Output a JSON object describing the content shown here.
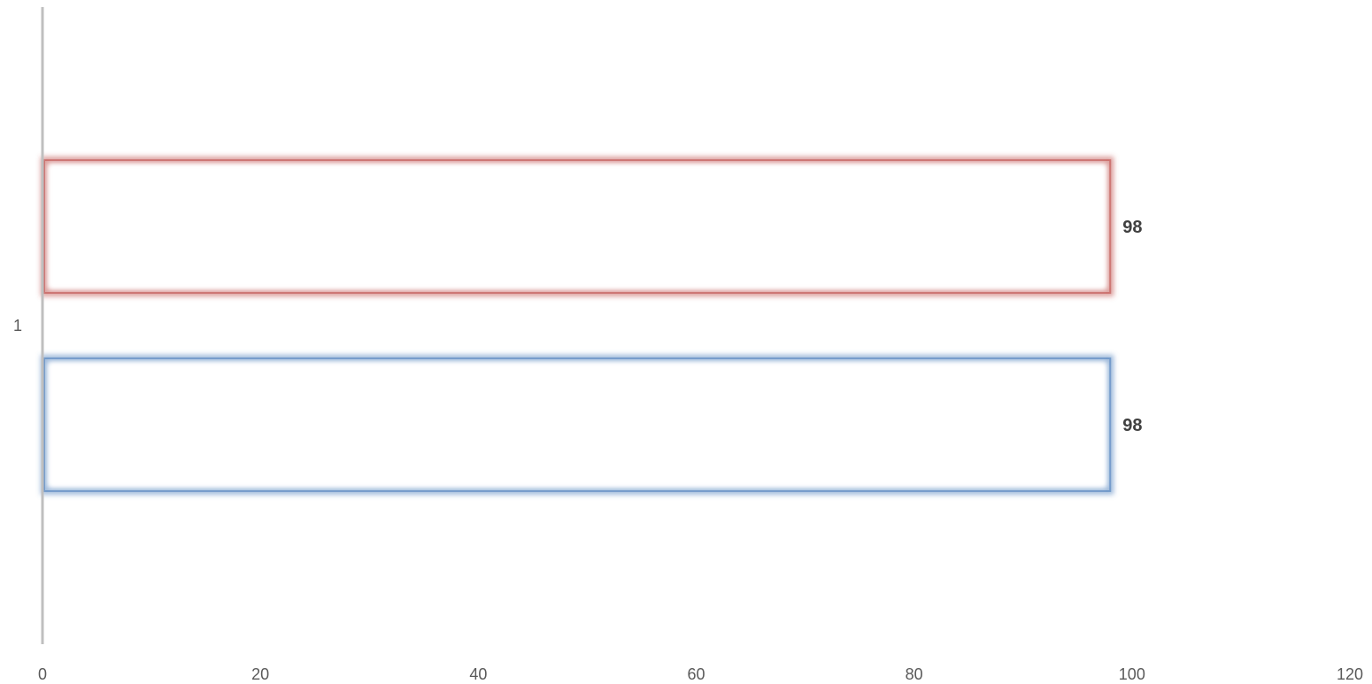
{
  "chart_data": {
    "type": "bar",
    "orientation": "horizontal",
    "categories": [
      "1"
    ],
    "series": [
      {
        "values": [
          98
        ],
        "color": "#4f81bd"
      },
      {
        "values": [
          98
        ],
        "color": "#c0504d"
      }
    ],
    "xlim": [
      0,
      120
    ],
    "x_ticks": [
      0,
      20,
      40,
      60,
      80,
      100,
      120
    ],
    "data_labels": true,
    "grid": false,
    "legend": "none",
    "bar_style": "white fill with soft glow outline"
  }
}
